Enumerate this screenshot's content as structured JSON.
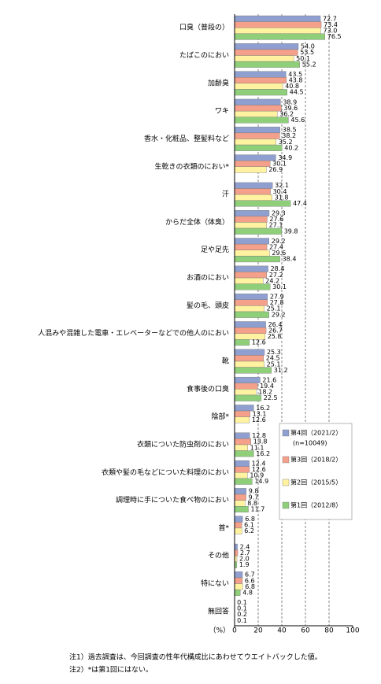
{
  "chart_data": {
    "type": "hbar",
    "categories": [
      "口臭（普段の）",
      "たばこのにおい",
      "加齢臭",
      "ワキ",
      "香水・化粧品、整髪料など",
      "生乾きの衣類のにおい*",
      "汗",
      "からだ全体（体臭）",
      "足や足先",
      "お酒のにおい",
      "髪の毛、頭皮",
      "人混みや混雑した電車・エレベーターなどでの他人のにおい",
      "靴",
      "食事後の口臭",
      "陰部*",
      "衣類についた防虫剤のにおい",
      "衣類や髪の毛などについた料理のにおい",
      "調理時に手についた食べ物のにおい",
      "首*",
      "その他",
      "特にない",
      "無回答"
    ],
    "series": [
      {
        "name": "第4回（2021/2）",
        "color": "#8f9fd0",
        "values": [
          72.7,
          54.0,
          43.5,
          38.9,
          38.5,
          34.9,
          32.1,
          29.3,
          29.2,
          28.4,
          27.9,
          26.4,
          25.3,
          21.6,
          16.2,
          12.8,
          12.4,
          9.8,
          6.8,
          2.4,
          6.7,
          0.1
        ],
        "value_labels": [
          "72.7",
          "54.0",
          "43.5",
          "38.9",
          "38.5",
          "34.9",
          "32.1",
          "29.3",
          "29.2",
          "28.4",
          "27.9",
          "26.4",
          "25.3",
          "21.6",
          "16.2",
          "12.8",
          "12.4",
          "9.8",
          "6.8",
          "2.4",
          "6.7",
          "0.1"
        ]
      },
      {
        "name": "第3回（2018/2）",
        "color": "#f4a08a",
        "values": [
          73.4,
          53.5,
          43.8,
          39.6,
          38.2,
          30.1,
          30.4,
          27.6,
          27.4,
          27.2,
          27.8,
          26.7,
          24.5,
          19.4,
          13.1,
          13.8,
          12.6,
          9.7,
          6.1,
          2.7,
          6.6,
          0.1
        ],
        "value_labels": [
          "73.4",
          "53.5",
          "43.8",
          "39.6",
          "38.2",
          "30.1",
          "30.4",
          "27.6",
          "27.4",
          "27.2",
          "27.8",
          "26.7",
          "24.5",
          "19.4",
          "13.1",
          "13.8",
          "12.6",
          "9.7",
          "6.1",
          "2.7",
          "6.6",
          "0.1"
        ]
      },
      {
        "name": "第2回（2015/5）",
        "color": "#fff2a0",
        "values": [
          73.0,
          50.1,
          40.8,
          36.2,
          35.2,
          26.9,
          31.8,
          27.1,
          29.6,
          24.2,
          25.1,
          25.8,
          25.1,
          18.2,
          12.6,
          11.1,
          10.9,
          8.8,
          6.2,
          2.0,
          6.8,
          0.2
        ],
        "value_labels": [
          "73.0",
          "50.1",
          "40.8",
          "36.2",
          "35.2",
          "26.9",
          "31.8",
          "27.1",
          "29.6",
          "24.2",
          "25.1",
          "25.8",
          "25.1",
          "18.2",
          "12.6",
          "11.1",
          "10.9",
          "8.8",
          "6.2",
          "2.0",
          "6.8",
          "0.2"
        ]
      },
      {
        "name": "第1回（2012/8）",
        "color": "#8fcf7a",
        "values": [
          76.5,
          55.2,
          44.5,
          45.6,
          40.2,
          null,
          47.4,
          39.8,
          38.4,
          30.1,
          29.2,
          12.6,
          31.2,
          22.5,
          null,
          16.2,
          14.9,
          11.7,
          null,
          1.9,
          4.8,
          0.1
        ],
        "value_labels": [
          "76.5",
          "55.2",
          "44.5",
          "45.6",
          "40.2",
          null,
          "47.4",
          "39.8",
          "38.4",
          "30.1",
          "29.2",
          "12.6",
          "31.2",
          "22.5",
          null,
          "16.2",
          "14.9",
          "11.7",
          null,
          "1.9",
          "4.8",
          "0.1"
        ]
      }
    ],
    "legend_note": "(n=10049)",
    "x_label": "（%）",
    "xlim": [
      0,
      100
    ],
    "xticks": [
      0,
      20,
      40,
      60,
      80,
      100
    ],
    "grid": true,
    "notes": [
      "注1）過去調査は、今回調査の性年代構成比にあわせてウエイトバックした値。",
      "注2）*は第1回にはない。"
    ]
  }
}
